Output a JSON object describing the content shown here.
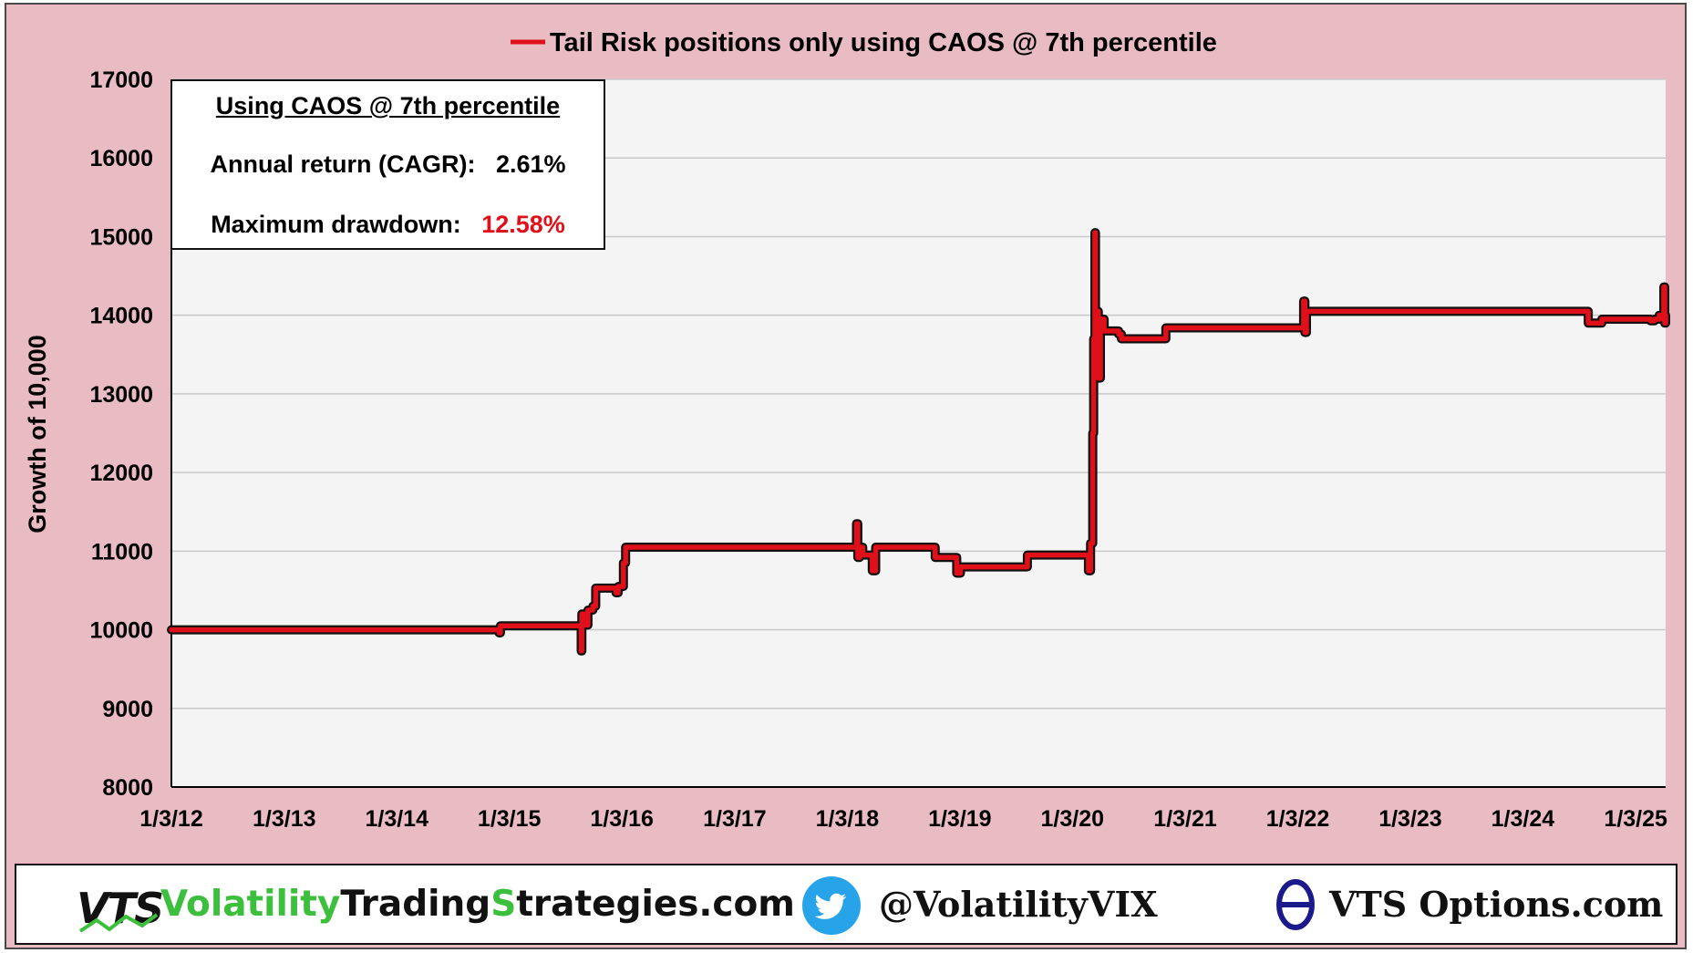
{
  "chart_data": {
    "type": "line",
    "legend": "Tail Risk positions only using CAOS @ 7th percentile",
    "ylabel": "Growth of 10,000",
    "xlabel": "",
    "ylim": [
      8000,
      17000
    ],
    "yticks": [
      8000,
      9000,
      10000,
      11000,
      12000,
      13000,
      14000,
      15000,
      16000,
      17000
    ],
    "xtick_labels": [
      "1/3/12",
      "1/3/13",
      "1/3/14",
      "1/3/15",
      "1/3/16",
      "1/3/17",
      "1/3/18",
      "1/3/19",
      "1/3/20",
      "1/3/21",
      "1/3/22",
      "1/3/23",
      "1/3/24",
      "1/3/25"
    ],
    "x_range": [
      "2012-01-03",
      "2025-04-10"
    ],
    "grid": "horizontal",
    "series": [
      {
        "name": "Tail Risk positions only using CAOS @ 7th percentile",
        "color": "#e0101a",
        "points": [
          [
            "2012-01-03",
            10000
          ],
          [
            "2014-11-20",
            10000
          ],
          [
            "2014-12-01",
            9960
          ],
          [
            "2014-12-05",
            10050
          ],
          [
            "2015-08-20",
            10050
          ],
          [
            "2015-08-24",
            9730
          ],
          [
            "2015-08-26",
            10200
          ],
          [
            "2015-09-05",
            10060
          ],
          [
            "2015-09-15",
            10250
          ],
          [
            "2015-10-01",
            10300
          ],
          [
            "2015-10-10",
            10530
          ],
          [
            "2015-12-10",
            10530
          ],
          [
            "2015-12-15",
            10470
          ],
          [
            "2015-12-22",
            10550
          ],
          [
            "2016-01-08",
            10850
          ],
          [
            "2016-01-15",
            11050
          ],
          [
            "2018-01-28",
            11050
          ],
          [
            "2018-02-02",
            11350
          ],
          [
            "2018-02-06",
            10920
          ],
          [
            "2018-02-12",
            11050
          ],
          [
            "2018-02-22",
            10950
          ],
          [
            "2018-03-20",
            10950
          ],
          [
            "2018-03-25",
            10750
          ],
          [
            "2018-04-05",
            11050
          ],
          [
            "2018-10-05",
            11050
          ],
          [
            "2018-10-15",
            10920
          ],
          [
            "2018-12-15",
            10920
          ],
          [
            "2018-12-24",
            10720
          ],
          [
            "2019-01-05",
            10800
          ],
          [
            "2019-08-01",
            10800
          ],
          [
            "2019-08-10",
            10950
          ],
          [
            "2020-02-18",
            10950
          ],
          [
            "2020-02-24",
            10750
          ],
          [
            "2020-03-02",
            11100
          ],
          [
            "2020-03-09",
            12500
          ],
          [
            "2020-03-12",
            13700
          ],
          [
            "2020-03-16",
            15050
          ],
          [
            "2020-03-18",
            13500
          ],
          [
            "2020-03-23",
            14050
          ],
          [
            "2020-03-27",
            13200
          ],
          [
            "2020-04-03",
            13950
          ],
          [
            "2020-04-15",
            13800
          ],
          [
            "2020-06-01",
            13760
          ],
          [
            "2020-06-10",
            13700
          ],
          [
            "2020-10-25",
            13700
          ],
          [
            "2020-11-01",
            13840
          ],
          [
            "2022-01-18",
            13840
          ],
          [
            "2022-01-22",
            14180
          ],
          [
            "2022-01-26",
            13780
          ],
          [
            "2022-01-31",
            14050
          ],
          [
            "2024-07-25",
            14050
          ],
          [
            "2024-08-02",
            13900
          ],
          [
            "2024-09-05",
            13900
          ],
          [
            "2024-09-15",
            13950
          ],
          [
            "2025-02-20",
            13930
          ],
          [
            "2025-03-05",
            13950
          ],
          [
            "2025-03-20",
            14000
          ],
          [
            "2025-04-02",
            13950
          ],
          [
            "2025-04-04",
            14360
          ],
          [
            "2025-04-07",
            13900
          ],
          [
            "2025-04-10",
            14000
          ]
        ]
      }
    ]
  },
  "stats": {
    "title": "Using CAOS @ 7th percentile",
    "cagr_label": "Annual return  (CAGR):",
    "cagr_value": "2.61%",
    "dd_label": "Maximum drawdown:",
    "dd_value": "12.58%"
  },
  "footer": {
    "logo": "VTS",
    "site_part1": "Volatility",
    "site_part2": "Trading",
    "site_part3": "Strategies.com",
    "twitter_handle": "@VolatilityVIX",
    "options_site": "VTS Options.com",
    "icons": [
      "vts-logo-icon",
      "twitter-bird-icon",
      "theta-icon"
    ]
  }
}
